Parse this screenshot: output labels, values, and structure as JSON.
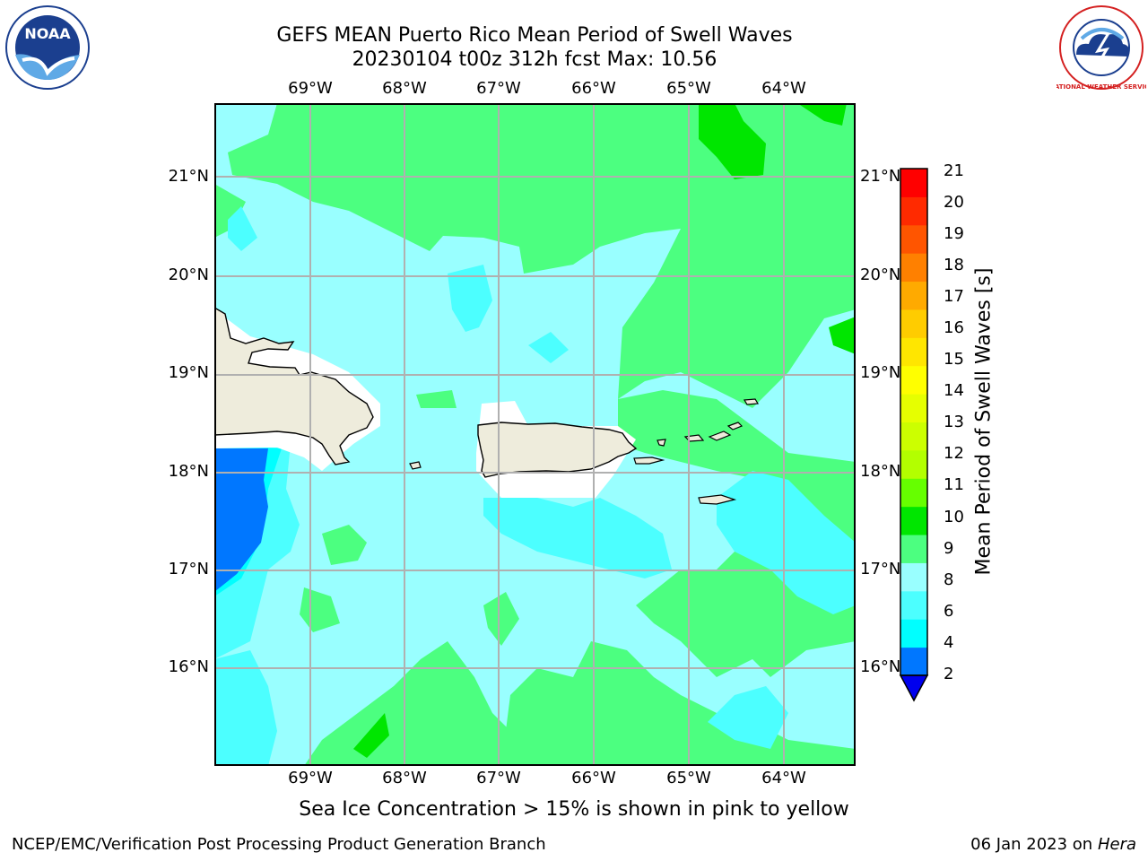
{
  "header": {
    "title_line1": "GEFS MEAN Puerto Rico Mean Period of Swell Waves",
    "title_line2": "20230104 t00z 312h fcst   Max: 10.56"
  },
  "logos": {
    "left": "noaa-logo",
    "left_text": "NOAA",
    "right": "national-weather-service-logo",
    "right_text": "NATIONAL WEATHER SERVICE"
  },
  "map": {
    "longitude_labels": [
      "69°W",
      "68°W",
      "67°W",
      "66°W",
      "65°W",
      "64°W"
    ],
    "latitude_labels": [
      "21°N",
      "20°N",
      "19°N",
      "18°N",
      "17°N",
      "16°N"
    ],
    "land_color": "#eeecdc",
    "grid_color": "#b0b0b0",
    "field_colors": {
      "2-4": "#0077ff",
      "4-6": "#00ffff",
      "6-8": "#4cffff",
      "8-9": "#99ffff",
      "9-10": "#4cff80",
      "10-11": "#00e600"
    }
  },
  "colorbar": {
    "title": "Mean Period of Swell Waves [s]",
    "tick_labels": [
      "21",
      "20",
      "19",
      "18",
      "17",
      "16",
      "15",
      "14",
      "13",
      "12",
      "11",
      "10",
      "9",
      "8",
      "6",
      "4",
      "2"
    ],
    "colors": [
      "#0000ee",
      "#0077ff",
      "#00ffff",
      "#4cffff",
      "#99ffff",
      "#4cff80",
      "#00e600",
      "#66ff00",
      "#b3ff00",
      "#ccff00",
      "#e6ff00",
      "#ffff00",
      "#ffe600",
      "#ffcc00",
      "#ffaa00",
      "#ff8000",
      "#ff5500",
      "#ff2a00",
      "#ff0000"
    ]
  },
  "footer": {
    "note": "Sea Ice Concentration > 15% is shown in pink to yellow",
    "left": "NCEP/EMC/Verification Post Processing Product Generation Branch",
    "right_date": "06 Jan 2023 on",
    "right_host": "Hera"
  }
}
